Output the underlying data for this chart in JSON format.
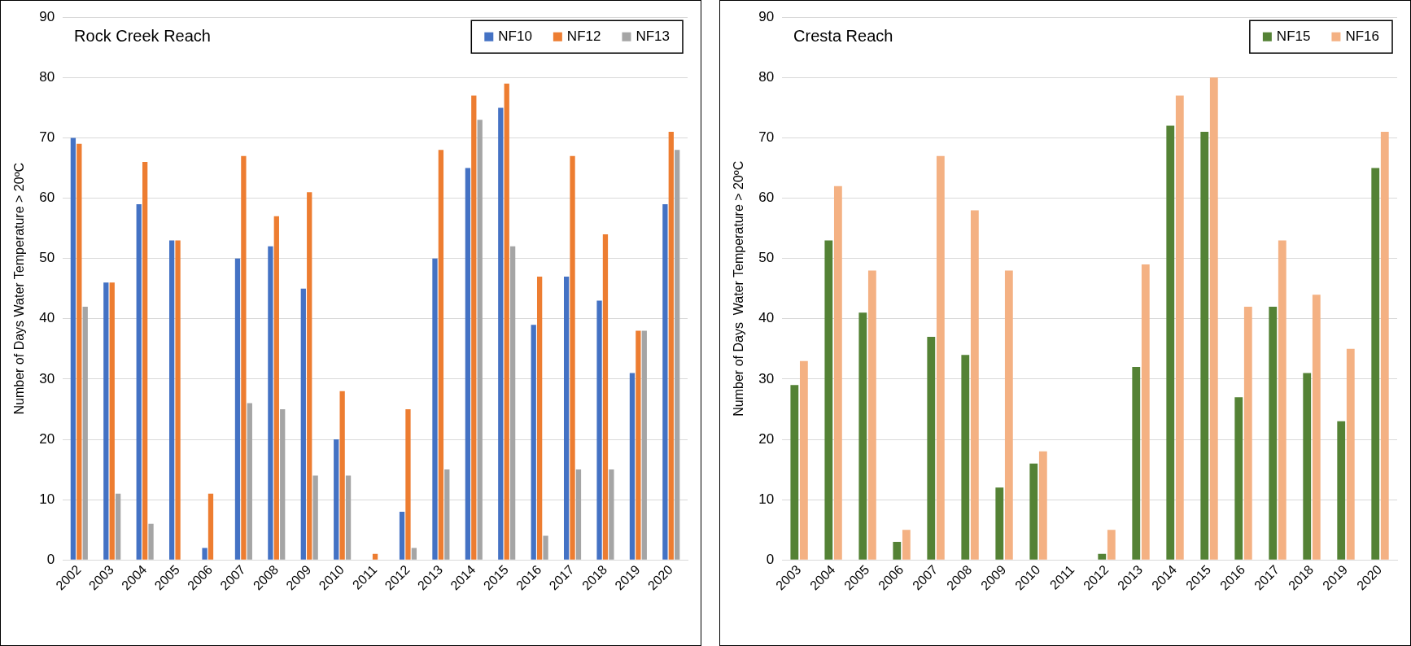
{
  "chart_data": [
    {
      "type": "bar",
      "title": "Rock Creek Reach",
      "ylabel": "Number of Days Water Temperature > 20ºC",
      "categories": [
        "2002",
        "2003",
        "2004",
        "2005",
        "2006",
        "2007",
        "2008",
        "2009",
        "2010",
        "2011",
        "2012",
        "2013",
        "2014",
        "2015",
        "2016",
        "2017",
        "2018",
        "2019",
        "2020"
      ],
      "series": [
        {
          "name": "NF10",
          "color": "#4472c4",
          "values": [
            70,
            46,
            59,
            53,
            2,
            50,
            52,
            45,
            20,
            0,
            8,
            50,
            65,
            75,
            39,
            47,
            43,
            31,
            59
          ]
        },
        {
          "name": "NF12",
          "color": "#ed7d31",
          "values": [
            69,
            46,
            66,
            53,
            11,
            67,
            57,
            61,
            28,
            1,
            25,
            68,
            77,
            79,
            47,
            67,
            54,
            38,
            71
          ]
        },
        {
          "name": "NF13",
          "color": "#a5a5a5",
          "values": [
            42,
            11,
            6,
            0,
            0,
            26,
            25,
            14,
            14,
            0,
            2,
            15,
            73,
            52,
            4,
            15,
            15,
            38,
            68
          ]
        }
      ],
      "ylim": [
        0,
        90
      ],
      "yticks": [
        0,
        10,
        20,
        30,
        40,
        50,
        60,
        70,
        80,
        90
      ],
      "grid": "y",
      "legend": "top right"
    },
    {
      "type": "bar",
      "title": "Cresta Reach",
      "ylabel": "Number of Days  Water Temperature > 20ºC",
      "categories": [
        "2003",
        "2004",
        "2005",
        "2006",
        "2007",
        "2008",
        "2009",
        "2010",
        "2011",
        "2012",
        "2013",
        "2014",
        "2015",
        "2016",
        "2017",
        "2018",
        "2019",
        "2020"
      ],
      "series": [
        {
          "name": "NF15",
          "color": "#548235",
          "values": [
            29,
            53,
            41,
            3,
            37,
            34,
            12,
            16,
            0,
            1,
            32,
            72,
            71,
            27,
            42,
            31,
            23,
            65
          ]
        },
        {
          "name": "NF16",
          "color": "#f4b183",
          "values": [
            33,
            62,
            48,
            5,
            67,
            58,
            48,
            18,
            0,
            5,
            49,
            77,
            80,
            42,
            53,
            44,
            35,
            71
          ]
        }
      ],
      "ylim": [
        0,
        90
      ],
      "yticks": [
        0,
        10,
        20,
        30,
        40,
        50,
        60,
        70,
        80,
        90
      ],
      "grid": "y",
      "legend": "top right"
    }
  ]
}
